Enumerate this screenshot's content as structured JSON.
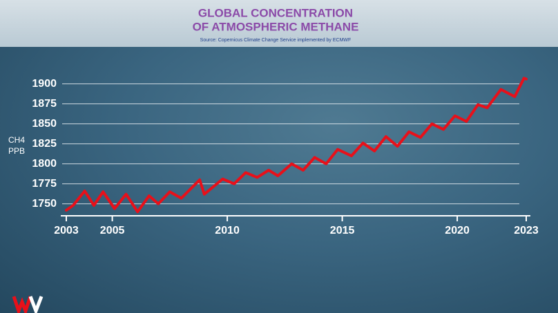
{
  "chart_data": {
    "type": "line",
    "title": [
      "GLOBAL CONCENTRATION",
      "OF ATMOSPHERIC METHANE"
    ],
    "source": "Source: Copernicus Climate Change Service implemented by ECMWF",
    "y_label": [
      "CH4",
      "PPB"
    ],
    "x": [
      2003.0,
      2003.3,
      2003.8,
      2004.2,
      2004.6,
      2005.1,
      2005.6,
      2006.1,
      2006.6,
      2007.0,
      2007.5,
      2008.0,
      2008.8,
      2009.0,
      2009.8,
      2010.3,
      2010.8,
      2011.3,
      2011.8,
      2012.2,
      2012.8,
      2013.3,
      2013.8,
      2014.3,
      2014.8,
      2015.4,
      2015.9,
      2016.4,
      2016.9,
      2017.4,
      2017.9,
      2018.4,
      2018.9,
      2019.4,
      2019.9,
      2020.4,
      2020.9,
      2021.3,
      2021.9,
      2022.5,
      2022.9,
      2023.0
    ],
    "series": [
      {
        "name": "CH4",
        "color": "#e8101a",
        "values": [
          1742,
          1748,
          1766,
          1748,
          1765,
          1744,
          1762,
          1740,
          1760,
          1750,
          1765,
          1757,
          1780,
          1762,
          1781,
          1775,
          1789,
          1783,
          1792,
          1785,
          1800,
          1792,
          1808,
          1800,
          1818,
          1810,
          1826,
          1816,
          1834,
          1822,
          1840,
          1833,
          1850,
          1843,
          1860,
          1853,
          1874,
          1870,
          1893,
          1884,
          1907,
          1906
        ]
      }
    ],
    "xlim": [
      2003,
      2023
    ],
    "xticks": [
      2003,
      2005,
      2010,
      2015,
      2020,
      2023
    ],
    "ylim": [
      1735,
      1910
    ],
    "yticks": [
      1750,
      1775,
      1800,
      1825,
      1850,
      1875,
      1900
    ],
    "grid": true
  }
}
